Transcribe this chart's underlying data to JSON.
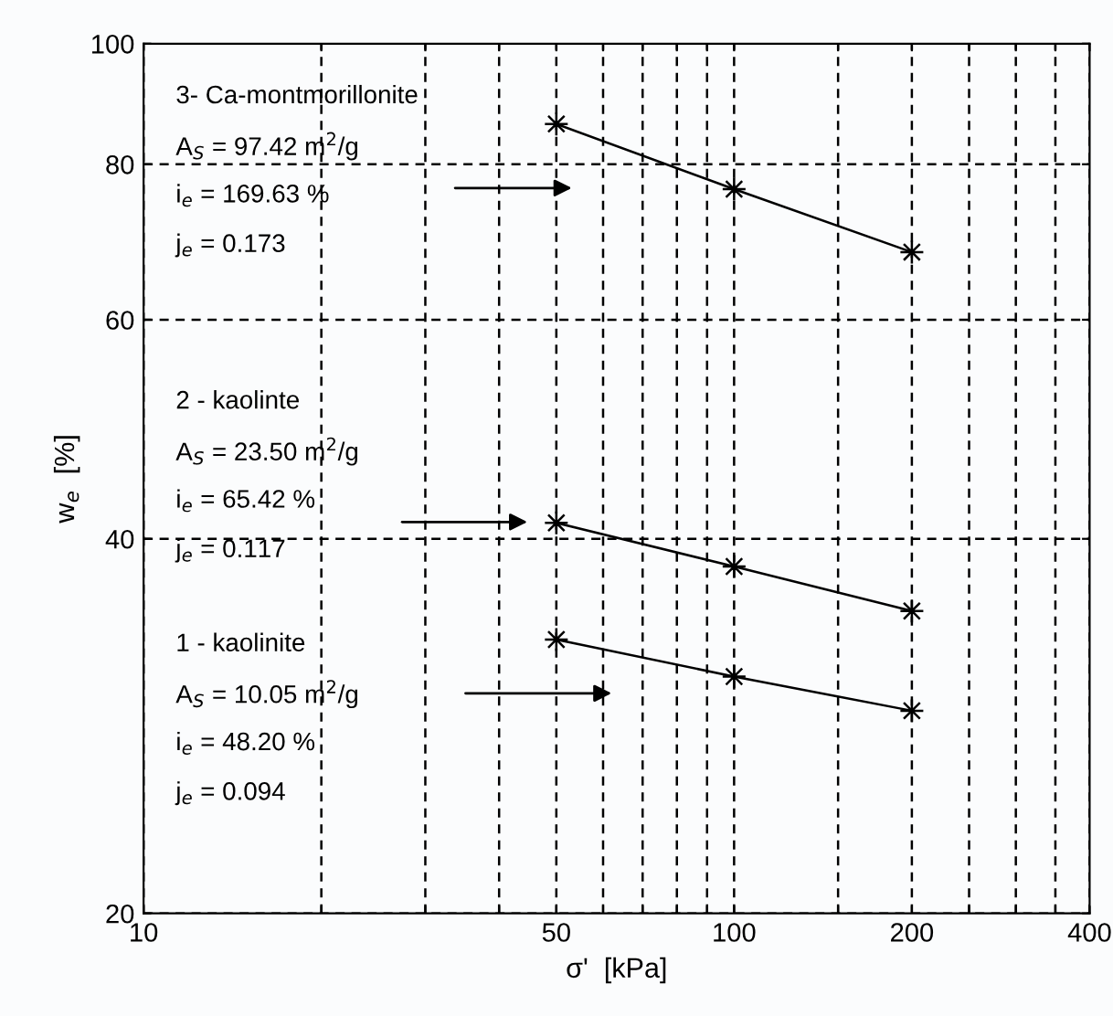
{
  "chart_data": {
    "type": "line",
    "xlabel": "σ'  [kPa]",
    "ylabel": "w$_{e}$  [%]",
    "log": "xy",
    "x": [
      50,
      100,
      200
    ],
    "series": [
      {
        "color": "#000000",
        "values": [
          86.2,
          76.4,
          68.0
        ]
      },
      {
        "color": "#000000",
        "values": [
          41.2,
          38.0,
          35.0
        ]
      },
      {
        "color": "#000000",
        "values": [
          33.2,
          31.0,
          29.1
        ]
      }
    ],
    "annotations": [
      "3- Ca-montmorillonite",
      "A$_{S}$ = 97.42 m$^{2}$/g",
      "i$_{e}$ = 169.63 %",
      "j$_{e}$ = 0.173",
      "2 - kaolinte",
      "A$_{S}$ = 23.50 m$^{2}$/g",
      "i$_{e}$ = 65.42 %",
      "j$_{e}$ = 0.117",
      "1 - kaolinite",
      "A$_{S}$ = 10.05 m$^{2}$/g",
      "i$_{e}$ = 48.20 %",
      "j$_{e}$ = 0.094"
    ],
    "xlim": [
      10,
      400
    ],
    "ylim": [
      20,
      100
    ],
    "xticks": [
      10,
      {
        "value": 20,
        "label": null
      },
      {
        "value": 30,
        "label": null
      },
      {
        "value": 40,
        "label": null
      },
      50,
      {
        "value": 60,
        "label": null
      },
      {
        "value": 70,
        "label": null
      },
      {
        "value": 80,
        "label": null
      },
      {
        "value": 90,
        "label": null
      },
      100,
      {
        "value": 150,
        "label": null
      },
      200,
      {
        "value": 250,
        "label": null
      },
      {
        "value": 300,
        "label": null
      },
      {
        "value": 350,
        "label": null
      },
      400
    ],
    "yticks": [
      20,
      40,
      60,
      80,
      100
    ],
    "grid": true,
    "marker": "star",
    "line_style": "solid",
    "legend": false
  }
}
